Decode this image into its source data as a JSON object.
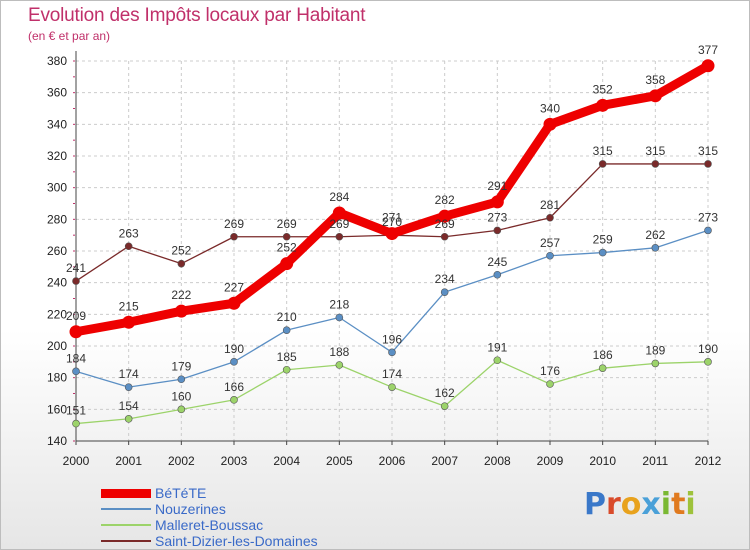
{
  "chart_data": {
    "type": "line",
    "title": "Evolution des Impôts locaux par Habitant",
    "subtitle": "(en € et par an)",
    "x": [
      "2000",
      "2001",
      "2002",
      "2003",
      "2004",
      "2005",
      "2006",
      "2007",
      "2008",
      "2009",
      "2010",
      "2011",
      "2012"
    ],
    "ylim": [
      140,
      380
    ],
    "yticks": [
      140,
      160,
      180,
      200,
      220,
      240,
      260,
      280,
      300,
      320,
      340,
      360,
      380
    ],
    "grid": true,
    "legend_position": "bottom-left",
    "series": [
      {
        "name": "BéTéTE",
        "color": "#ee0000",
        "values": [
          209,
          215,
          222,
          227,
          252,
          284,
          271,
          282,
          291,
          340,
          352,
          358,
          377
        ]
      },
      {
        "name": "Nouzerines",
        "color": "#5b8fc4",
        "values": [
          184,
          174,
          179,
          190,
          210,
          218,
          196,
          234,
          245,
          257,
          259,
          262,
          273
        ]
      },
      {
        "name": "Malleret-Boussac",
        "color": "#9cd36a",
        "values": [
          151,
          154,
          160,
          166,
          185,
          188,
          174,
          162,
          191,
          176,
          186,
          189,
          190
        ]
      },
      {
        "name": "Saint-Dizier-les-Domaines",
        "color": "#7a2a2a",
        "values": [
          241,
          263,
          252,
          269,
          269,
          269,
          270,
          269,
          273,
          281,
          315,
          315,
          315
        ]
      }
    ]
  },
  "logo": {
    "letters": [
      "P",
      "r",
      "o",
      "x",
      "i",
      "t",
      "i"
    ]
  }
}
